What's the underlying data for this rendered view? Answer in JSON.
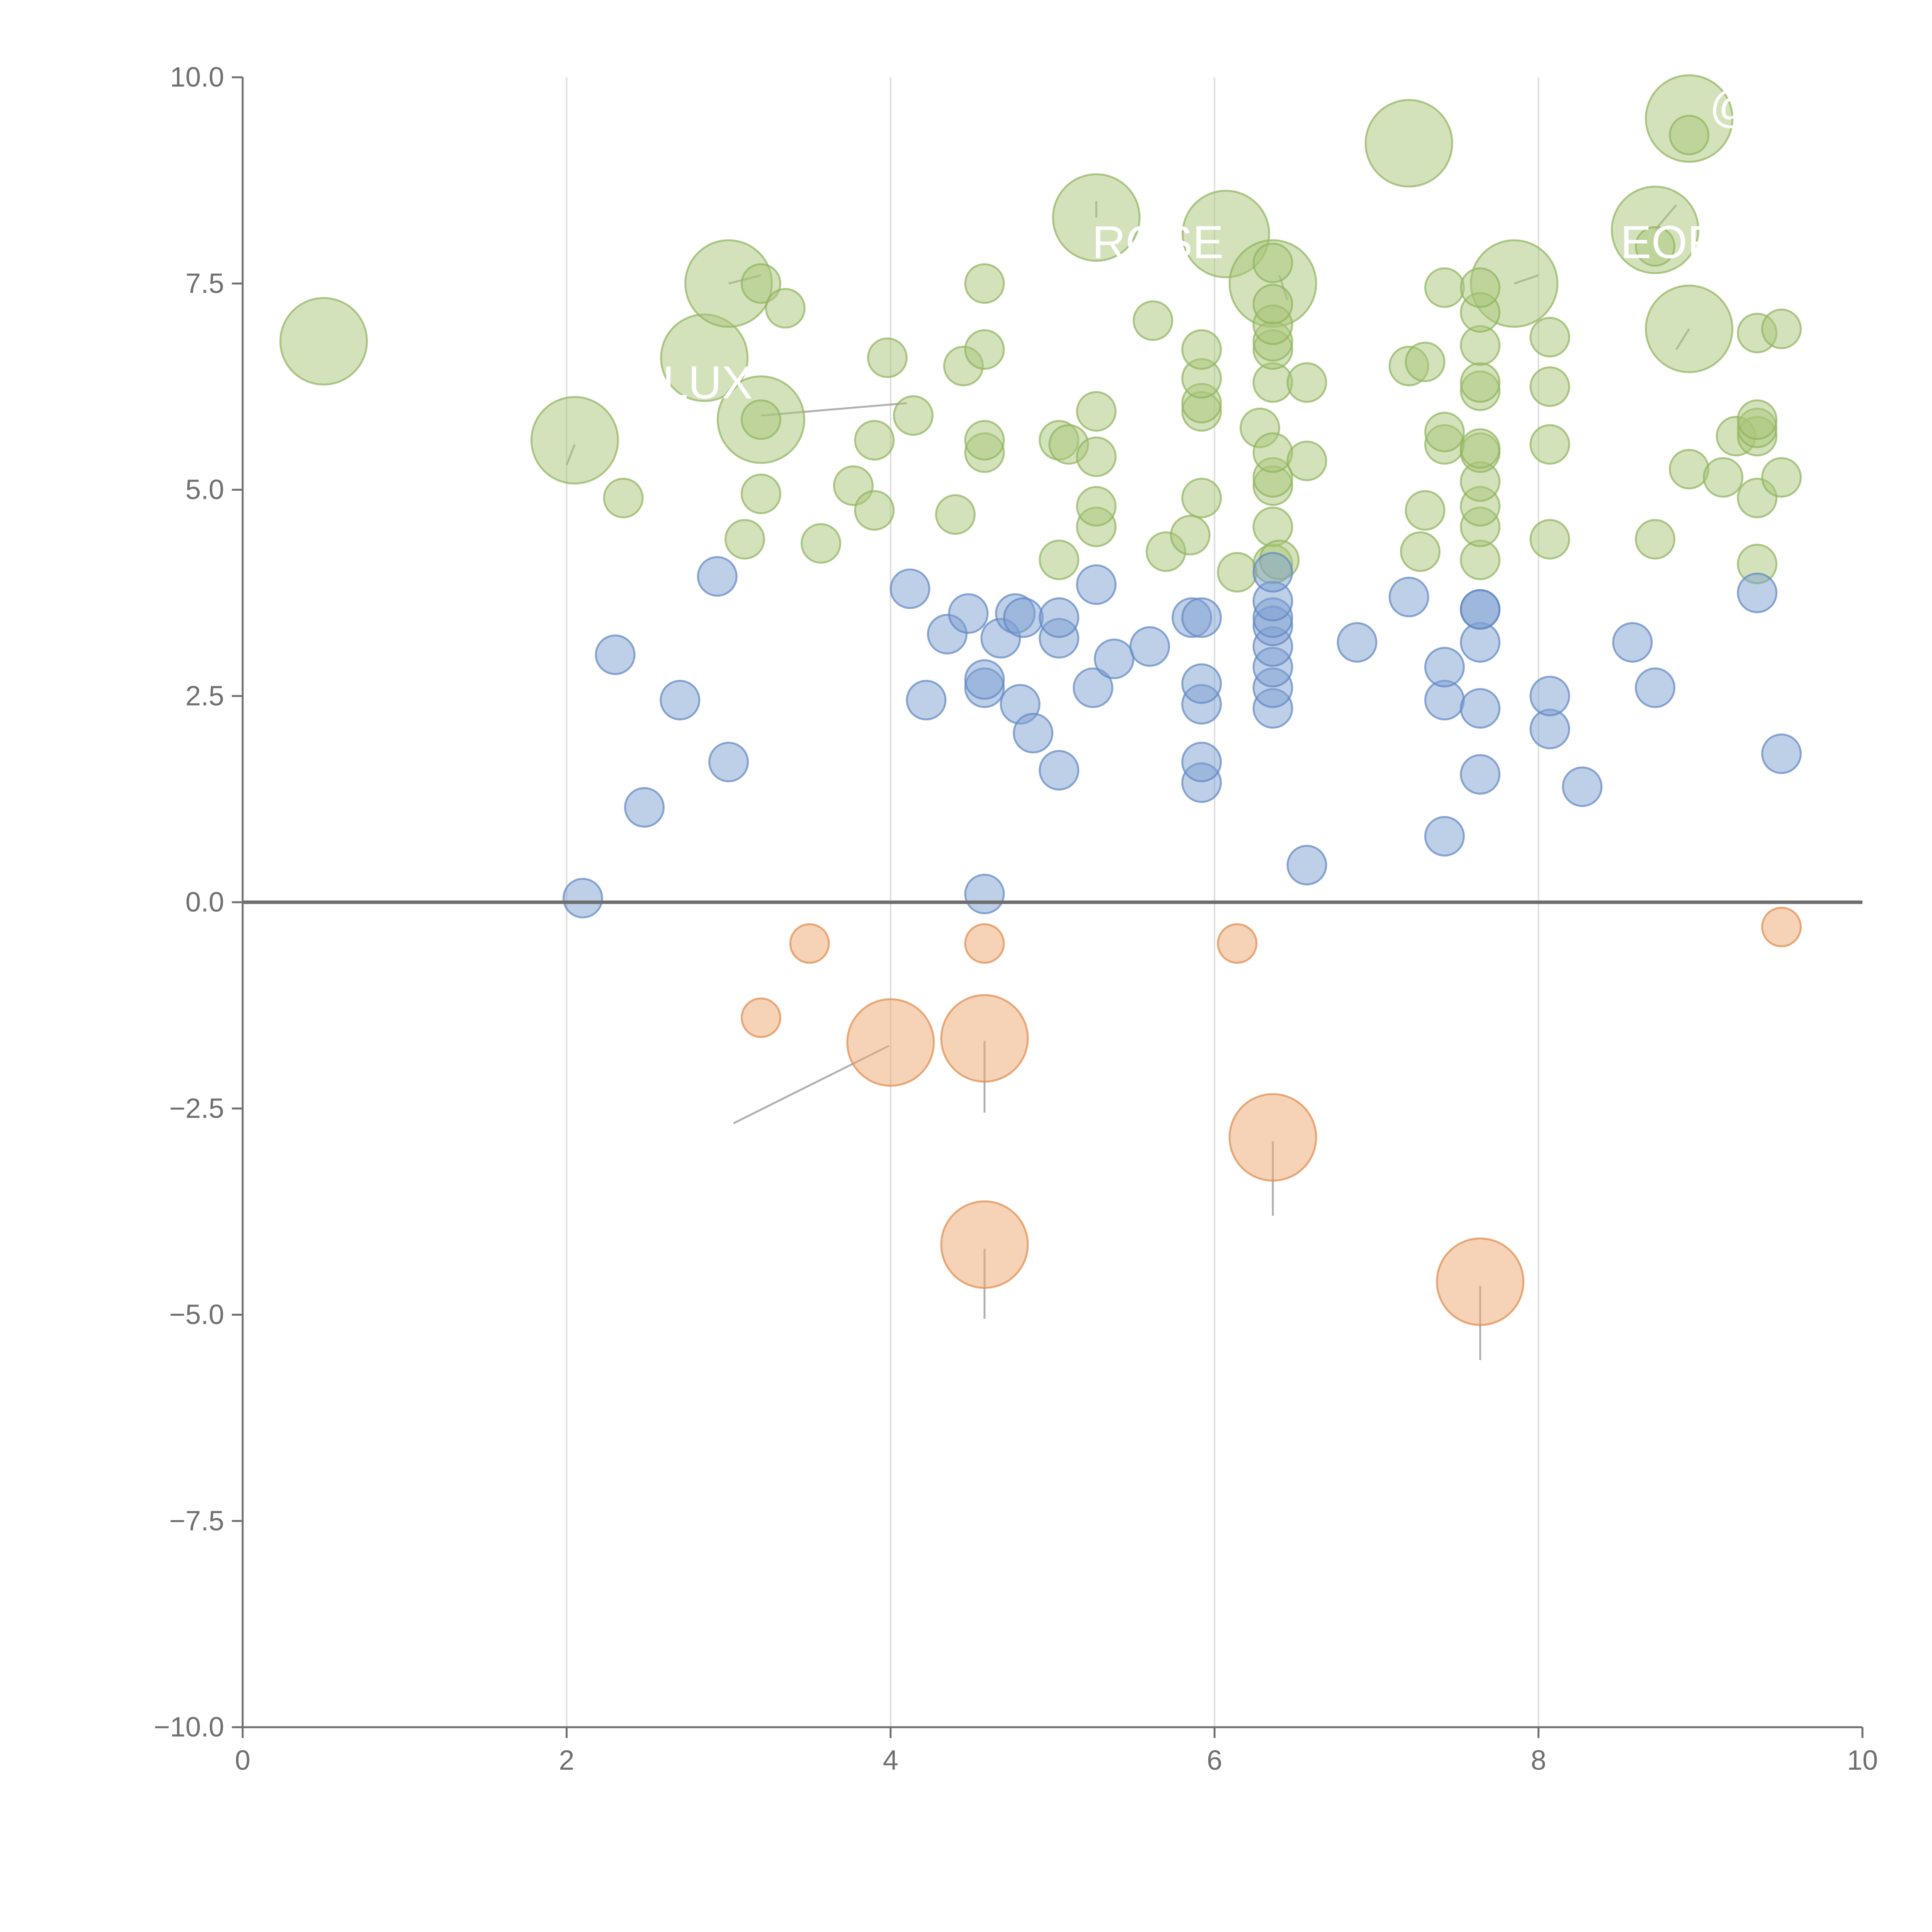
{
  "chart_data": {
    "type": "scatter",
    "title": "",
    "xlabel": "",
    "ylabel": "",
    "xlim": [
      0,
      10
    ],
    "ylim": [
      -10,
      10
    ],
    "x_ticks": [
      0,
      2,
      4,
      6,
      8,
      10
    ],
    "x_tick_labels": [
      "0",
      "2",
      "4",
      "6",
      "8",
      "10"
    ],
    "y_ticks": [
      10,
      7.5,
      5,
      2.5,
      0,
      -2.5,
      -5,
      -7.5,
      -10
    ],
    "y_tick_labels": [
      "10.0",
      "7.5",
      "5.0",
      "2.5",
      "0.0",
      "−2.5",
      "−5.0",
      "−7.5",
      "−10.0"
    ],
    "vertical_grid_at": [
      2,
      4,
      6,
      8
    ],
    "reference_line_y": 0,
    "legend": "none",
    "colors": {
      "green_fill": "#a9c679",
      "green_stroke": "#8fb35c",
      "blue_fill": "#7ea0d2",
      "blue_stroke": "#5f86c2",
      "orange_fill": "#eda56e",
      "orange_stroke": "#e08a4c",
      "leader": "#b0b0b0",
      "label": "#ffffff"
    },
    "series": [
      {
        "name": "green",
        "color": "#a9c679",
        "points": [
          {
            "x": 0.5,
            "y": 6.8,
            "size": "large"
          },
          {
            "x": 2.05,
            "y": 5.6,
            "size": "large"
          },
          {
            "x": 2.85,
            "y": 6.6,
            "size": "large"
          },
          {
            "x": 3.0,
            "y": 7.5,
            "size": "large"
          },
          {
            "x": 3.2,
            "y": 5.85,
            "size": "large"
          },
          {
            "x": 5.27,
            "y": 8.3,
            "size": "large"
          },
          {
            "x": 6.07,
            "y": 8.1,
            "size": "large"
          },
          {
            "x": 6.36,
            "y": 7.5,
            "size": "large"
          },
          {
            "x": 7.2,
            "y": 9.2,
            "size": "large"
          },
          {
            "x": 7.85,
            "y": 7.5,
            "size": "large"
          },
          {
            "x": 8.72,
            "y": 8.15,
            "size": "large"
          },
          {
            "x": 8.93,
            "y": 9.5,
            "size": "large"
          },
          {
            "x": 8.93,
            "y": 6.95,
            "size": "large"
          },
          {
            "x": 2.35,
            "y": 4.9,
            "size": "small"
          },
          {
            "x": 3.1,
            "y": 4.4,
            "size": "small"
          },
          {
            "x": 3.2,
            "y": 4.95,
            "size": "small"
          },
          {
            "x": 3.2,
            "y": 5.85,
            "size": "small"
          },
          {
            "x": 3.2,
            "y": 7.5,
            "size": "small"
          },
          {
            "x": 3.35,
            "y": 7.2,
            "size": "small"
          },
          {
            "x": 3.57,
            "y": 4.35,
            "size": "small"
          },
          {
            "x": 3.77,
            "y": 5.05,
            "size": "small"
          },
          {
            "x": 3.9,
            "y": 4.75,
            "size": "small"
          },
          {
            "x": 3.9,
            "y": 5.6,
            "size": "small"
          },
          {
            "x": 3.98,
            "y": 6.6,
            "size": "small"
          },
          {
            "x": 4.14,
            "y": 5.9,
            "size": "small"
          },
          {
            "x": 4.4,
            "y": 4.7,
            "size": "small"
          },
          {
            "x": 4.45,
            "y": 6.5,
            "size": "small"
          },
          {
            "x": 4.58,
            "y": 5.45,
            "size": "small"
          },
          {
            "x": 4.58,
            "y": 5.6,
            "size": "small"
          },
          {
            "x": 4.58,
            "y": 6.7,
            "size": "small"
          },
          {
            "x": 4.58,
            "y": 7.5,
            "size": "small"
          },
          {
            "x": 5.04,
            "y": 4.15,
            "size": "small"
          },
          {
            "x": 5.04,
            "y": 5.6,
            "size": "small"
          },
          {
            "x": 5.1,
            "y": 5.55,
            "size": "small"
          },
          {
            "x": 5.27,
            "y": 4.55,
            "size": "small"
          },
          {
            "x": 5.27,
            "y": 4.8,
            "size": "small"
          },
          {
            "x": 5.27,
            "y": 5.4,
            "size": "small"
          },
          {
            "x": 5.27,
            "y": 5.95,
            "size": "small"
          },
          {
            "x": 5.62,
            "y": 7.05,
            "size": "small"
          },
          {
            "x": 5.7,
            "y": 4.25,
            "size": "small"
          },
          {
            "x": 5.85,
            "y": 4.45,
            "size": "small"
          },
          {
            "x": 5.92,
            "y": 4.9,
            "size": "small"
          },
          {
            "x": 5.92,
            "y": 5.95,
            "size": "small"
          },
          {
            "x": 5.92,
            "y": 6.05,
            "size": "small"
          },
          {
            "x": 5.92,
            "y": 6.35,
            "size": "small"
          },
          {
            "x": 5.92,
            "y": 6.7,
            "size": "small"
          },
          {
            "x": 6.14,
            "y": 4.0,
            "size": "small"
          },
          {
            "x": 6.28,
            "y": 5.75,
            "size": "small"
          },
          {
            "x": 6.36,
            "y": 4.1,
            "size": "small"
          },
          {
            "x": 6.36,
            "y": 4.55,
            "size": "small"
          },
          {
            "x": 6.36,
            "y": 5.05,
            "size": "small"
          },
          {
            "x": 6.36,
            "y": 5.15,
            "size": "small"
          },
          {
            "x": 6.36,
            "y": 5.45,
            "size": "small"
          },
          {
            "x": 6.36,
            "y": 6.3,
            "size": "small"
          },
          {
            "x": 6.36,
            "y": 6.7,
            "size": "small"
          },
          {
            "x": 6.36,
            "y": 6.8,
            "size": "small"
          },
          {
            "x": 6.36,
            "y": 7.0,
            "size": "small"
          },
          {
            "x": 6.36,
            "y": 7.25,
            "size": "small"
          },
          {
            "x": 6.36,
            "y": 7.75,
            "size": "small"
          },
          {
            "x": 6.4,
            "y": 4.15,
            "size": "small"
          },
          {
            "x": 6.57,
            "y": 5.35,
            "size": "small"
          },
          {
            "x": 6.57,
            "y": 6.3,
            "size": "small"
          },
          {
            "x": 7.2,
            "y": 6.5,
            "size": "small"
          },
          {
            "x": 7.27,
            "y": 4.25,
            "size": "small"
          },
          {
            "x": 7.3,
            "y": 4.75,
            "size": "small"
          },
          {
            "x": 7.3,
            "y": 6.55,
            "size": "small"
          },
          {
            "x": 7.42,
            "y": 5.55,
            "size": "small"
          },
          {
            "x": 7.42,
            "y": 5.7,
            "size": "small"
          },
          {
            "x": 7.42,
            "y": 7.45,
            "size": "small"
          },
          {
            "x": 7.64,
            "y": 4.15,
            "size": "small"
          },
          {
            "x": 7.64,
            "y": 4.55,
            "size": "small"
          },
          {
            "x": 7.64,
            "y": 4.8,
            "size": "small"
          },
          {
            "x": 7.64,
            "y": 5.1,
            "size": "small"
          },
          {
            "x": 7.64,
            "y": 5.45,
            "size": "small"
          },
          {
            "x": 7.64,
            "y": 5.5,
            "size": "small"
          },
          {
            "x": 7.64,
            "y": 6.2,
            "size": "small"
          },
          {
            "x": 7.64,
            "y": 6.3,
            "size": "small"
          },
          {
            "x": 7.64,
            "y": 6.75,
            "size": "small"
          },
          {
            "x": 7.64,
            "y": 7.15,
            "size": "small"
          },
          {
            "x": 7.64,
            "y": 7.45,
            "size": "small"
          },
          {
            "x": 8.07,
            "y": 4.4,
            "size": "small"
          },
          {
            "x": 8.07,
            "y": 5.55,
            "size": "small"
          },
          {
            "x": 8.07,
            "y": 6.25,
            "size": "small"
          },
          {
            "x": 8.07,
            "y": 6.85,
            "size": "small"
          },
          {
            "x": 8.72,
            "y": 4.4,
            "size": "small"
          },
          {
            "x": 8.72,
            "y": 7.95,
            "size": "small"
          },
          {
            "x": 8.93,
            "y": 5.25,
            "size": "small"
          },
          {
            "x": 8.93,
            "y": 9.3,
            "size": "small"
          },
          {
            "x": 9.14,
            "y": 5.15,
            "size": "small"
          },
          {
            "x": 9.22,
            "y": 5.65,
            "size": "small"
          },
          {
            "x": 9.35,
            "y": 4.1,
            "size": "small"
          },
          {
            "x": 9.35,
            "y": 4.9,
            "size": "small"
          },
          {
            "x": 9.35,
            "y": 5.65,
            "size": "small"
          },
          {
            "x": 9.35,
            "y": 5.75,
            "size": "small"
          },
          {
            "x": 9.35,
            "y": 5.85,
            "size": "small"
          },
          {
            "x": 9.35,
            "y": 6.9,
            "size": "small"
          },
          {
            "x": 9.5,
            "y": 5.15,
            "size": "small"
          },
          {
            "x": 9.5,
            "y": 6.95,
            "size": "small"
          }
        ]
      },
      {
        "name": "blue",
        "color": "#7ea0d2",
        "points": [
          {
            "x": 2.1,
            "y": 0.05,
            "size": "small"
          },
          {
            "x": 2.3,
            "y": 3.0,
            "size": "small"
          },
          {
            "x": 2.48,
            "y": 1.15,
            "size": "small"
          },
          {
            "x": 2.7,
            "y": 2.45,
            "size": "small"
          },
          {
            "x": 2.93,
            "y": 3.95,
            "size": "small"
          },
          {
            "x": 3.0,
            "y": 1.7,
            "size": "small"
          },
          {
            "x": 4.12,
            "y": 3.8,
            "size": "small"
          },
          {
            "x": 4.22,
            "y": 2.45,
            "size": "small"
          },
          {
            "x": 4.35,
            "y": 3.25,
            "size": "small"
          },
          {
            "x": 4.48,
            "y": 3.5,
            "size": "small"
          },
          {
            "x": 4.58,
            "y": 0.1,
            "size": "small"
          },
          {
            "x": 4.58,
            "y": 2.6,
            "size": "small"
          },
          {
            "x": 4.58,
            "y": 2.7,
            "size": "small"
          },
          {
            "x": 4.68,
            "y": 3.2,
            "size": "small"
          },
          {
            "x": 4.77,
            "y": 3.5,
            "size": "small"
          },
          {
            "x": 4.8,
            "y": 2.4,
            "size": "small"
          },
          {
            "x": 4.82,
            "y": 3.45,
            "size": "small"
          },
          {
            "x": 4.88,
            "y": 2.05,
            "size": "small"
          },
          {
            "x": 5.04,
            "y": 1.6,
            "size": "small"
          },
          {
            "x": 5.04,
            "y": 3.2,
            "size": "small"
          },
          {
            "x": 5.04,
            "y": 3.45,
            "size": "small"
          },
          {
            "x": 5.25,
            "y": 2.6,
            "size": "small"
          },
          {
            "x": 5.27,
            "y": 3.85,
            "size": "small"
          },
          {
            "x": 5.38,
            "y": 2.95,
            "size": "small"
          },
          {
            "x": 5.6,
            "y": 3.1,
            "size": "small"
          },
          {
            "x": 5.86,
            "y": 3.45,
            "size": "small"
          },
          {
            "x": 5.92,
            "y": 1.45,
            "size": "small"
          },
          {
            "x": 5.92,
            "y": 1.7,
            "size": "small"
          },
          {
            "x": 5.92,
            "y": 2.4,
            "size": "small"
          },
          {
            "x": 5.92,
            "y": 2.65,
            "size": "small"
          },
          {
            "x": 5.92,
            "y": 3.45,
            "size": "small"
          },
          {
            "x": 6.36,
            "y": 2.35,
            "size": "small"
          },
          {
            "x": 6.36,
            "y": 2.6,
            "size": "small"
          },
          {
            "x": 6.36,
            "y": 2.85,
            "size": "small"
          },
          {
            "x": 6.36,
            "y": 3.1,
            "size": "small"
          },
          {
            "x": 6.36,
            "y": 3.35,
            "size": "small"
          },
          {
            "x": 6.36,
            "y": 3.45,
            "size": "small"
          },
          {
            "x": 6.36,
            "y": 3.65,
            "size": "small"
          },
          {
            "x": 6.36,
            "y": 4.0,
            "size": "small"
          },
          {
            "x": 6.57,
            "y": 0.45,
            "size": "small"
          },
          {
            "x": 6.88,
            "y": 3.15,
            "size": "small"
          },
          {
            "x": 7.2,
            "y": 3.7,
            "size": "small"
          },
          {
            "x": 7.42,
            "y": 0.8,
            "size": "small"
          },
          {
            "x": 7.42,
            "y": 2.45,
            "size": "small"
          },
          {
            "x": 7.42,
            "y": 2.85,
            "size": "small"
          },
          {
            "x": 7.64,
            "y": 1.55,
            "size": "small"
          },
          {
            "x": 7.64,
            "y": 2.35,
            "size": "small"
          },
          {
            "x": 7.64,
            "y": 3.15,
            "size": "small"
          },
          {
            "x": 7.64,
            "y": 3.55,
            "size": "small"
          },
          {
            "x": 7.64,
            "y": 3.55,
            "size": "small"
          },
          {
            "x": 8.07,
            "y": 2.1,
            "size": "small"
          },
          {
            "x": 8.07,
            "y": 2.5,
            "size": "small"
          },
          {
            "x": 8.27,
            "y": 1.4,
            "size": "small"
          },
          {
            "x": 8.58,
            "y": 3.15,
            "size": "small"
          },
          {
            "x": 8.72,
            "y": 2.6,
            "size": "small"
          },
          {
            "x": 9.35,
            "y": 3.75,
            "size": "small"
          },
          {
            "x": 9.5,
            "y": 1.8,
            "size": "small"
          }
        ]
      },
      {
        "name": "orange",
        "color": "#eda56e",
        "points": [
          {
            "x": 3.2,
            "y": -1.4,
            "size": "small"
          },
          {
            "x": 3.5,
            "y": -0.5,
            "size": "small"
          },
          {
            "x": 4.0,
            "y": -1.7,
            "size": "large"
          },
          {
            "x": 4.58,
            "y": -0.5,
            "size": "small"
          },
          {
            "x": 4.58,
            "y": -1.65,
            "size": "large"
          },
          {
            "x": 4.58,
            "y": -4.15,
            "size": "large"
          },
          {
            "x": 6.14,
            "y": -0.5,
            "size": "small"
          },
          {
            "x": 6.36,
            "y": -2.85,
            "size": "large"
          },
          {
            "x": 7.64,
            "y": -4.6,
            "size": "large"
          },
          {
            "x": 9.5,
            "y": -0.3,
            "size": "small"
          }
        ]
      }
    ],
    "annotations": [
      {
        "text": "LUX",
        "x": 2.87,
        "y": 6.3,
        "color": "#ffffff"
      },
      {
        "text": "ROSE",
        "x": 5.65,
        "y": 8.0,
        "color": "#ffffff"
      },
      {
        "text": "EOF",
        "x": 8.8,
        "y": 8.0,
        "color": "#ffffff"
      },
      {
        "text": "@",
        "x": 9.2,
        "y": 9.65,
        "color": "#ffffff"
      }
    ],
    "leader_lines": [
      {
        "from": [
          3.03,
          -2.68
        ],
        "to": [
          3.99,
          -1.74
        ]
      },
      {
        "from": [
          4.58,
          -2.55
        ],
        "to": [
          4.58,
          -1.68
        ]
      },
      {
        "from": [
          4.58,
          -5.05
        ],
        "to": [
          4.58,
          -4.2
        ]
      },
      {
        "from": [
          6.36,
          -3.8
        ],
        "to": [
          6.36,
          -2.9
        ]
      },
      {
        "from": [
          7.64,
          -5.55
        ],
        "to": [
          7.64,
          -4.65
        ]
      },
      {
        "from": [
          2.0,
          5.3
        ],
        "to": [
          2.05,
          5.55
        ]
      },
      {
        "from": [
          3.2,
          7.6
        ],
        "to": [
          3.0,
          7.5
        ]
      },
      {
        "from": [
          3.2,
          5.9
        ],
        "to": [
          4.1,
          6.05
        ]
      },
      {
        "from": [
          5.27,
          8.5
        ],
        "to": [
          5.27,
          8.3
        ]
      },
      {
        "from": [
          6.4,
          7.6
        ],
        "to": [
          6.45,
          7.3
        ]
      },
      {
        "from": [
          7.85,
          7.5
        ],
        "to": [
          8.0,
          7.6
        ]
      },
      {
        "from": [
          8.72,
          8.15
        ],
        "to": [
          8.85,
          8.45
        ]
      },
      {
        "from": [
          8.93,
          6.95
        ],
        "to": [
          8.85,
          6.7
        ]
      }
    ]
  }
}
